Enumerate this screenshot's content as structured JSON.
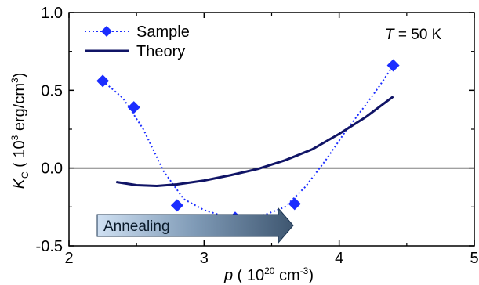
{
  "chart_data": {
    "type": "line",
    "xlabel": {
      "var": "p",
      "open": " ( 10",
      "sup": "20",
      "mid": " cm",
      "sup2": "-3",
      "close": ")"
    },
    "ylabel": {
      "var": "K",
      "sub": "C",
      "open": " ( 10",
      "sup": "3",
      "mid": " erg/cm",
      "sup2": "3",
      "close": ")"
    },
    "xlim": [
      2,
      5
    ],
    "ylim": [
      -0.5,
      1.0
    ],
    "xticks": [
      2,
      3,
      4,
      5
    ],
    "xtick_labels": [
      "2",
      "3",
      "4",
      "5"
    ],
    "yticks": [
      -0.5,
      0.0,
      0.5,
      1.0
    ],
    "ytick_labels": [
      "-0.5",
      "0.0",
      "0.5",
      "1.0"
    ],
    "zero_line": 0.0,
    "legend_position": "top-left",
    "annotation": {
      "var": "T",
      "rest": " = 50 K"
    },
    "arrow_label": "Annealing",
    "colors": {
      "series": "#1b2dff",
      "theory": "#101466",
      "axis": "#000000"
    },
    "series": [
      {
        "name": "Sample",
        "style": "dotted-with-diamond-markers",
        "points": [
          {
            "x": 2.25,
            "y": 0.56
          },
          {
            "x": 2.48,
            "y": 0.39
          },
          {
            "x": 2.8,
            "y": -0.24
          },
          {
            "x": 3.23,
            "y": -0.32
          },
          {
            "x": 3.67,
            "y": -0.23
          },
          {
            "x": 4.4,
            "y": 0.66
          }
        ],
        "fit_curve": [
          [
            2.25,
            0.56
          ],
          [
            2.4,
            0.45
          ],
          [
            2.55,
            0.25
          ],
          [
            2.7,
            -0.02
          ],
          [
            2.85,
            -0.2
          ],
          [
            3.0,
            -0.27
          ],
          [
            3.15,
            -0.31
          ],
          [
            3.3,
            -0.31
          ],
          [
            3.45,
            -0.3
          ],
          [
            3.6,
            -0.25
          ],
          [
            3.75,
            -0.12
          ],
          [
            3.9,
            0.05
          ],
          [
            4.05,
            0.24
          ],
          [
            4.2,
            0.41
          ],
          [
            4.3,
            0.53
          ],
          [
            4.4,
            0.66
          ]
        ]
      },
      {
        "name": "Theory",
        "style": "solid",
        "points": [
          {
            "x": 2.35,
            "y": -0.09
          },
          {
            "x": 2.5,
            "y": -0.11
          },
          {
            "x": 2.65,
            "y": -0.115
          },
          {
            "x": 2.8,
            "y": -0.105
          },
          {
            "x": 3.0,
            "y": -0.08
          },
          {
            "x": 3.2,
            "y": -0.045
          },
          {
            "x": 3.4,
            "y": -0.005
          },
          {
            "x": 3.6,
            "y": 0.05
          },
          {
            "x": 3.8,
            "y": 0.12
          },
          {
            "x": 4.0,
            "y": 0.22
          },
          {
            "x": 4.2,
            "y": 0.33
          },
          {
            "x": 4.4,
            "y": 0.46
          }
        ]
      }
    ]
  }
}
